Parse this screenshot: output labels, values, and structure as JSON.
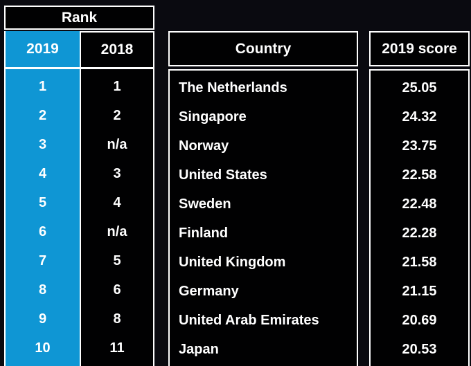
{
  "chart_data": {
    "type": "table",
    "title": "Rank",
    "columns": {
      "rank_group": "Rank",
      "y2019": "2019",
      "y2018": "2018",
      "country": "Country",
      "score": "2019 score"
    },
    "rows": [
      {
        "r2019": "1",
        "r2018": "1",
        "country": "The Netherlands",
        "score": "25.05"
      },
      {
        "r2019": "2",
        "r2018": "2",
        "country": "Singapore",
        "score": "24.32"
      },
      {
        "r2019": "3",
        "r2018": "n/a",
        "country": "Norway",
        "score": "23.75"
      },
      {
        "r2019": "4",
        "r2018": "3",
        "country": "United States",
        "score": "22.58"
      },
      {
        "r2019": "5",
        "r2018": "4",
        "country": "Sweden",
        "score": "22.48"
      },
      {
        "r2019": "6",
        "r2018": "n/a",
        "country": "Finland",
        "score": "22.28"
      },
      {
        "r2019": "7",
        "r2018": "5",
        "country": "United Kingdom",
        "score": "21.58"
      },
      {
        "r2019": "8",
        "r2018": "6",
        "country": "Germany",
        "score": "21.15"
      },
      {
        "r2019": "9",
        "r2018": "8",
        "country": "United Arab Emirates",
        "score": "20.69"
      },
      {
        "r2019": "10",
        "r2018": "11",
        "country": "Japan",
        "score": "20.53"
      }
    ]
  },
  "colors": {
    "accent_blue": "#0f96d4",
    "border_white": "#ffffff",
    "cell_background": "#010102",
    "page_background": "#0a0a10",
    "text": "#ffffff"
  }
}
